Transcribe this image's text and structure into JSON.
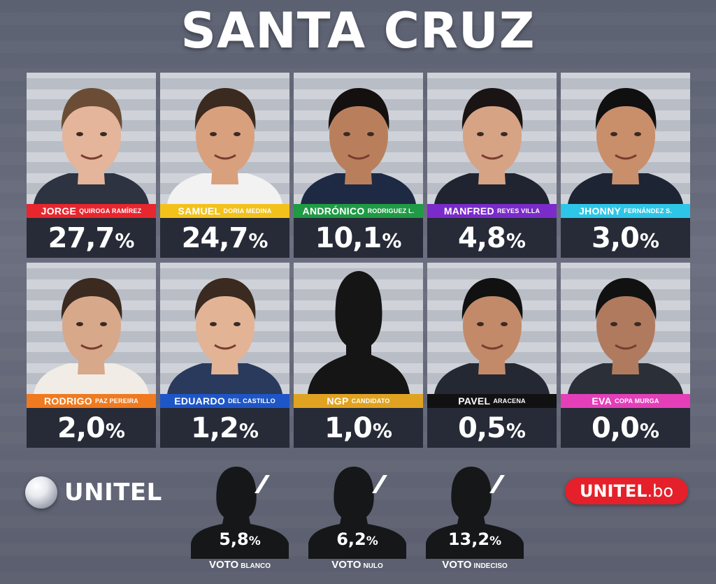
{
  "title": "SANTA CRUZ",
  "candidates": [
    {
      "first": "JORGE",
      "last": "QUIROGA RAMÍREZ",
      "value": "27,7",
      "color": "#e8262e"
    },
    {
      "first": "SAMUEL",
      "last": "DORIA MEDINA",
      "value": "24,7",
      "color": "#f2c21b"
    },
    {
      "first": "ANDRÓNICO",
      "last": "RODRIGUEZ L.",
      "value": "10,1",
      "color": "#1f9a45"
    },
    {
      "first": "MANFRED",
      "last": "REYES VILLA",
      "value": "4,8",
      "color": "#7a2bc9"
    },
    {
      "first": "JHONNY",
      "last": "FERNÁNDEZ S.",
      "value": "3,0",
      "color": "#2dc6e8"
    },
    {
      "first": "RODRIGO",
      "last": "PAZ PEREIRA",
      "value": "2,0",
      "color": "#f07a1f"
    },
    {
      "first": "EDUARDO",
      "last": "DEL CASTILLO",
      "value": "1,2",
      "color": "#1e56c8"
    },
    {
      "first": "NGP",
      "last": "CANDIDATO",
      "value": "1,0",
      "color": "#e0a321"
    },
    {
      "first": "PAVEL",
      "last": "ARACENA",
      "value": "0,5",
      "color": "#111111"
    },
    {
      "first": "EVA",
      "last": "COPA MURGA",
      "value": "0,0",
      "color": "#e43fb8"
    }
  ],
  "percent_sign": "%",
  "logo_left": "UNITEL",
  "logo_right": {
    "main": "UNITEL",
    "suffix": ".bo"
  },
  "votes": [
    {
      "value": "5,8",
      "first": "VOTO",
      "second": "BLANCO"
    },
    {
      "value": "6,2",
      "first": "VOTO",
      "second": "NULO"
    },
    {
      "value": "13,2",
      "first": "VOTO",
      "second": "INDECISO"
    }
  ]
}
